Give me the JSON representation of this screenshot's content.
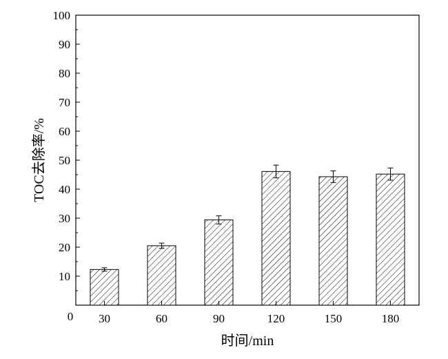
{
  "chart_data": {
    "type": "bar",
    "title": "",
    "xlabel": "时间/min",
    "ylabel": "TOC去除率/%",
    "categories": [
      "30",
      "60",
      "90",
      "120",
      "150",
      "180"
    ],
    "values": [
      12.3,
      20.5,
      29.4,
      46.1,
      44.3,
      45.2
    ],
    "error": [
      0.6,
      0.9,
      1.4,
      2.2,
      2.0,
      2.1
    ],
    "ylim": [
      0,
      100
    ],
    "yticks": [
      "100",
      "90",
      "80",
      "70",
      "60",
      "50",
      "40",
      "30",
      "20",
      "10"
    ],
    "origin_label": "0",
    "bar_fill": "hatched",
    "grid": false,
    "colors": {
      "stroke": "#000000",
      "hatch": "#000000",
      "background": "#ffffff"
    }
  }
}
